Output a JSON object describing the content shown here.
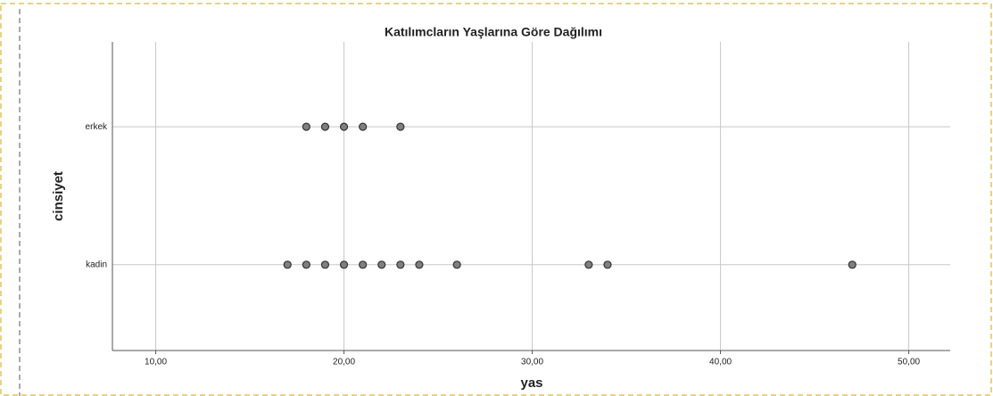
{
  "chart_data": {
    "type": "dot",
    "title": "Katılımcların Yaşlarına Göre Dağılımı",
    "x_label": "yas",
    "y_label": "cinsiyet",
    "categories": [
      "erkek",
      "kadin"
    ],
    "x": [
      18,
      19,
      20,
      21,
      23,
      17,
      18,
      19,
      20,
      21,
      22,
      23,
      24,
      26,
      33,
      34,
      47
    ],
    "y": [
      "erkek",
      "erkek",
      "erkek",
      "erkek",
      "erkek",
      "kadin",
      "kadin",
      "kadin",
      "kadin",
      "kadin",
      "kadin",
      "kadin",
      "kadin",
      "kadin",
      "kadin",
      "kadin",
      "kadin"
    ],
    "color": "#7f7f7f",
    "xlim": [
      7.7,
      52.2
    ],
    "xticks": [
      {
        "value": 10,
        "label": "10,00"
      },
      {
        "value": 20,
        "label": "20,00"
      },
      {
        "value": 30,
        "label": "30,00"
      },
      {
        "value": 40,
        "label": "40,00"
      },
      {
        "value": 50,
        "label": "50,00"
      }
    ],
    "grid": true
  }
}
